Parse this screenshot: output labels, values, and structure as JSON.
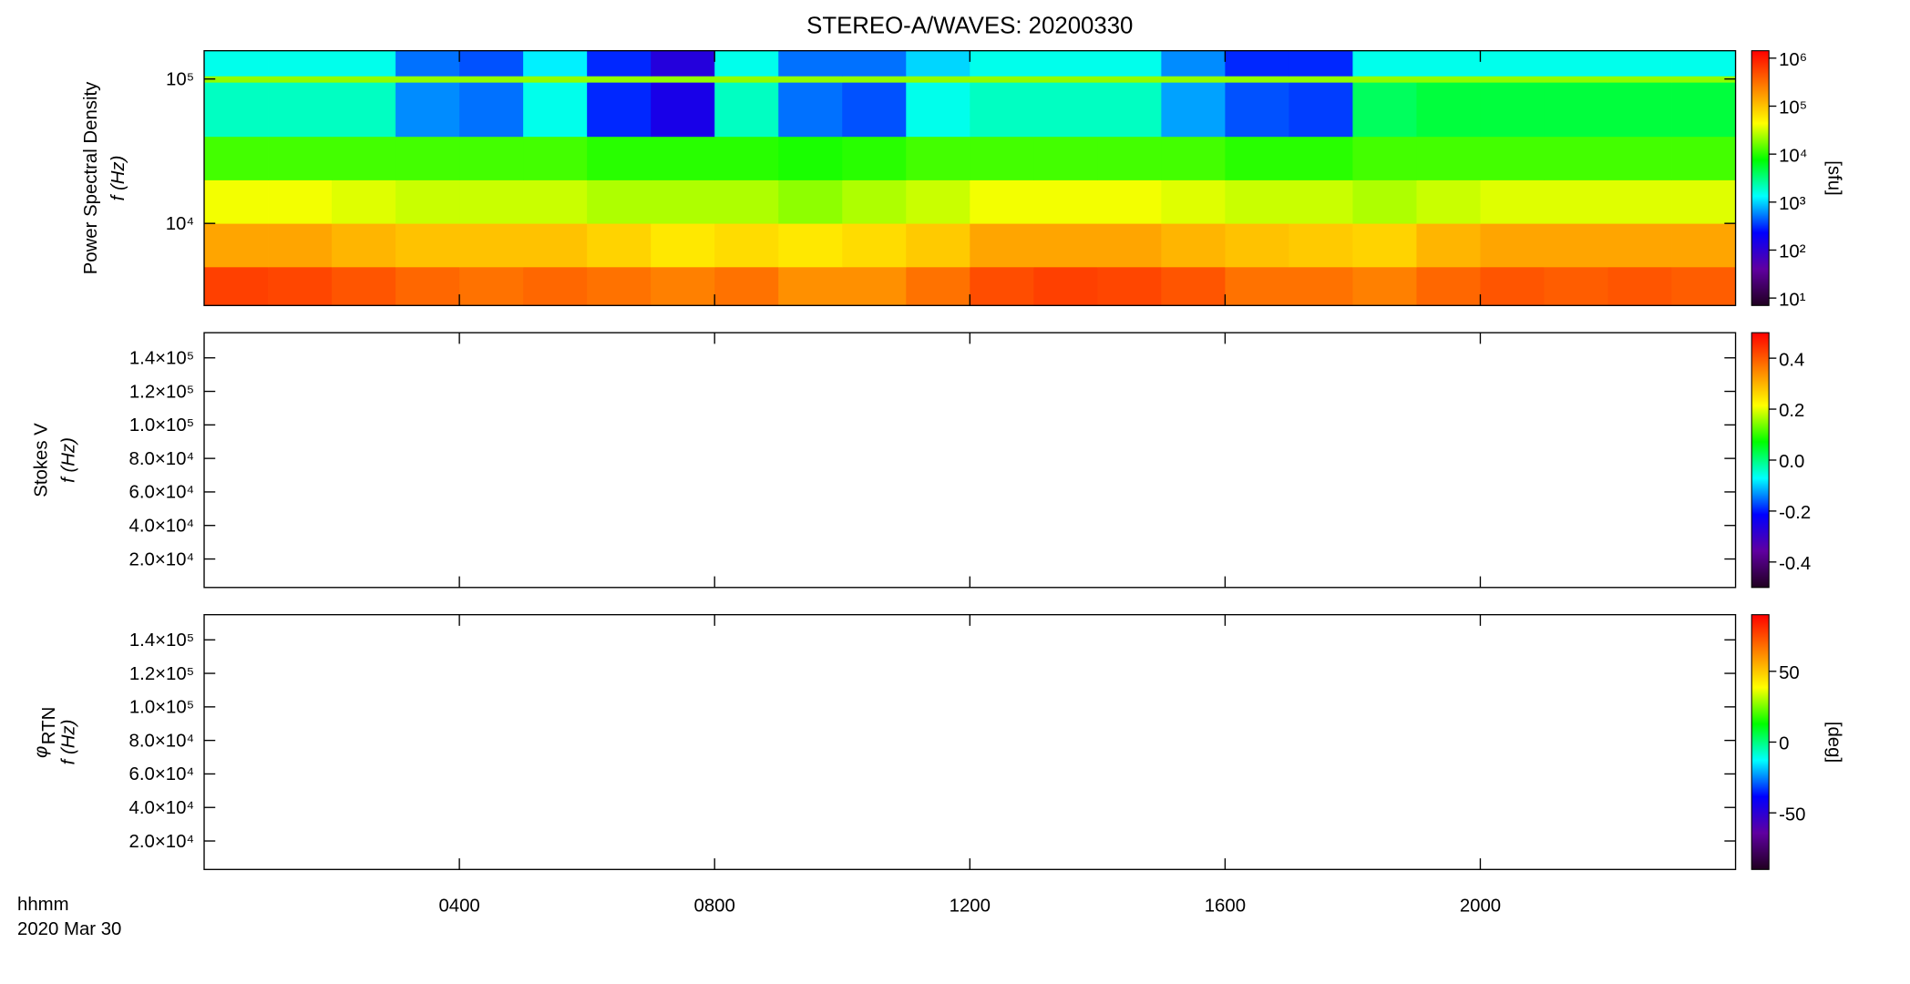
{
  "chart_data": {
    "type": "heatmap",
    "title": "STEREO-A/WAVES: 20200330",
    "x_label": "hhmm",
    "date_label": "2020 Mar 30",
    "xlim": [
      0,
      24
    ],
    "xticks": [
      {
        "value": 4,
        "label": "0400"
      },
      {
        "value": 8,
        "label": "0800"
      },
      {
        "value": 12,
        "label": "1200"
      },
      {
        "value": 16,
        "label": "1600"
      },
      {
        "value": 20,
        "label": "2000"
      }
    ],
    "xbins": [
      0,
      1,
      2,
      3,
      4,
      5,
      6,
      7,
      8,
      9,
      10,
      11,
      12,
      13,
      14,
      15,
      16,
      17,
      18,
      19,
      20,
      21,
      22,
      23,
      24
    ],
    "colormap": [
      "#200020",
      "#6000a0",
      "#0000ff",
      "#00ffff",
      "#00ff00",
      "#ffff00",
      "#ff8000",
      "#ff0000"
    ],
    "panels": [
      {
        "ylabel": "Power Spectral Density",
        "ylabel2": "f (Hz)",
        "ylog": true,
        "ylim": [
          2700,
          157000
        ],
        "yticks": [
          {
            "value": 10000,
            "label": "10⁴"
          },
          {
            "value": 100000,
            "label": "10⁵"
          }
        ],
        "zlog": true,
        "zlim": [
          7,
          1430000
        ],
        "zlabel": "[sfu]",
        "zticks": [
          {
            "value": 10,
            "label": "10¹"
          },
          {
            "value": 100,
            "label": "10²"
          },
          {
            "value": 1000,
            "label": "10³"
          },
          {
            "value": 10000,
            "label": "10⁴"
          },
          {
            "value": 100000,
            "label": "10⁵"
          },
          {
            "value": 1000000,
            "label": "10⁶"
          }
        ],
        "ybins": [
          2700,
          5000,
          10000,
          20000,
          40000,
          95000,
          105000,
          157000
        ],
        "z": [
          [
            600000,
            550000,
            450000,
            350000,
            300000,
            350000,
            300000,
            250000,
            300000,
            200000,
            200000,
            300000,
            500000,
            600000,
            550000,
            450000,
            300000,
            300000,
            250000,
            350000,
            450000,
            400000,
            450000,
            400000
          ],
          [
            150000,
            150000,
            120000,
            100000,
            100000,
            100000,
            80000,
            60000,
            70000,
            60000,
            70000,
            90000,
            150000,
            150000,
            150000,
            120000,
            100000,
            90000,
            80000,
            120000,
            150000,
            150000,
            150000,
            150000
          ],
          [
            40000,
            40000,
            35000,
            30000,
            30000,
            30000,
            25000,
            25000,
            25000,
            20000,
            25000,
            30000,
            40000,
            40000,
            40000,
            35000,
            30000,
            30000,
            25000,
            30000,
            35000,
            35000,
            35000,
            35000
          ],
          [
            12000,
            12000,
            12000,
            12000,
            12000,
            12000,
            10000,
            10000,
            10000,
            9000,
            10000,
            12000,
            12000,
            12000,
            12000,
            12000,
            10000,
            10000,
            12000,
            12000,
            12000,
            12000,
            12000,
            12000
          ],
          [
            2000,
            2000,
            2000,
            600,
            500,
            1500,
            300,
            150,
            2000,
            500,
            400,
            1500,
            2000,
            2000,
            2000,
            700,
            400,
            350,
            4000,
            5000,
            5000,
            5000,
            5000,
            5000
          ],
          [
            20000,
            20000,
            20000,
            20000,
            20000,
            20000,
            20000,
            20000,
            20000,
            20000,
            20000,
            20000,
            20000,
            20000,
            20000,
            20000,
            20000,
            20000,
            20000,
            20000,
            20000,
            20000,
            20000,
            20000
          ],
          [
            1500,
            1500,
            1500,
            500,
            400,
            1200,
            300,
            120,
            1500,
            500,
            500,
            1000,
            1500,
            1500,
            1500,
            600,
            300,
            300,
            1500,
            1500,
            1500,
            1500,
            1500,
            1500
          ]
        ]
      },
      {
        "ylabel": "Stokes V",
        "ylabel2": "f (Hz)",
        "ylog": false,
        "ylim": [
          3000,
          155000
        ],
        "yticks": [
          {
            "value": 20000,
            "label": "2.0×10⁴"
          },
          {
            "value": 40000,
            "label": "4.0×10⁴"
          },
          {
            "value": 60000,
            "label": "6.0×10⁴"
          },
          {
            "value": 80000,
            "label": "8.0×10⁴"
          },
          {
            "value": 100000,
            "label": "1.0×10⁵"
          },
          {
            "value": 120000,
            "label": "1.2×10⁵"
          },
          {
            "value": 140000,
            "label": "1.4×10⁵"
          }
        ],
        "zlog": false,
        "zlim": [
          -0.5,
          0.5
        ],
        "zticks": [
          -0.4,
          -0.2,
          {
            "value": 0,
            "label": "0.0"
          },
          0.2,
          0.4
        ]
      },
      {
        "ylabel": "φ",
        "ylabel_sub": "RTN",
        "ylabel2": "f (Hz)",
        "ylog": false,
        "ylim": [
          3000,
          155000
        ],
        "yticks": [
          {
            "value": 20000,
            "label": "2.0×10⁴"
          },
          {
            "value": 40000,
            "label": "4.0×10⁴"
          },
          {
            "value": 60000,
            "label": "6.0×10⁴"
          },
          {
            "value": 80000,
            "label": "8.0×10⁴"
          },
          {
            "value": 100000,
            "label": "1.0×10⁵"
          },
          {
            "value": 120000,
            "label": "1.2×10⁵"
          },
          {
            "value": 140000,
            "label": "1.4×10⁵"
          }
        ],
        "zlog": false,
        "zlim": [
          -90,
          90
        ],
        "zlabel": "[deg]",
        "zticks": [
          -50,
          0,
          50
        ]
      }
    ]
  }
}
